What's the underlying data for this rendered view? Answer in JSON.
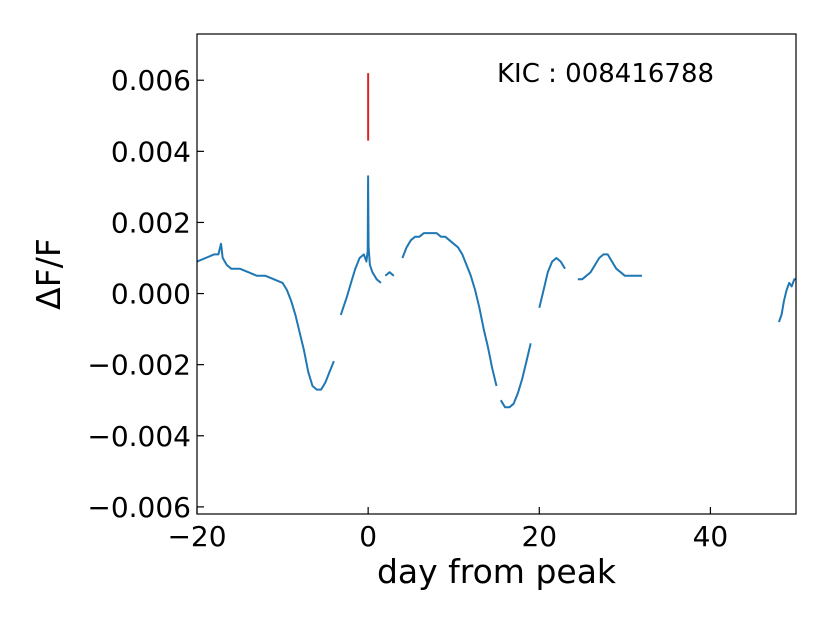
{
  "chart_data": {
    "type": "line",
    "title": "",
    "xlabel": "day from peak",
    "ylabel": "ΔF/F",
    "xlim": [
      -20,
      50
    ],
    "ylim": [
      -0.0062,
      0.0073
    ],
    "xticks": [
      -20,
      0,
      20,
      40
    ],
    "xtick_labels": [
      "−20",
      "0",
      "20",
      "40"
    ],
    "yticks": [
      -0.006,
      -0.004,
      -0.002,
      0.0,
      0.002,
      0.004,
      0.006
    ],
    "ytick_labels": [
      "−0.006",
      "−0.004",
      "−0.002",
      "0.000",
      "0.002",
      "0.004",
      "0.006"
    ],
    "annotation": "KIC : 008416788",
    "grid": false,
    "legend": "none",
    "series_color": "#1f77b4",
    "marker_color": "#d62728",
    "peak_marker": {
      "x": 0.0,
      "y_from": 0.0043,
      "y_to": 0.0062
    },
    "segments": [
      {
        "x": [
          -20,
          -19,
          -18,
          -17.5,
          -17.2,
          -17,
          -16.5,
          -16,
          -15,
          -14,
          -13,
          -12,
          -11,
          -10,
          -9.5,
          -9,
          -8.5,
          -8,
          -7.5,
          -7,
          -6.5,
          -6,
          -5.5,
          -5,
          -4.5,
          -4
        ],
        "y": [
          0.0009,
          0.001,
          0.0011,
          0.0011,
          0.0014,
          0.001,
          0.0008,
          0.0007,
          0.0007,
          0.0006,
          0.0005,
          0.0005,
          0.0004,
          0.0003,
          0.0001,
          -0.0002,
          -0.0006,
          -0.0011,
          -0.0016,
          -0.0022,
          -0.0026,
          -0.0027,
          -0.0027,
          -0.0025,
          -0.0022,
          -0.0019
        ]
      },
      {
        "x": [
          -3.2,
          -2.5,
          -2,
          -1.5,
          -1,
          -0.5,
          -0.2,
          -0.05,
          0.0,
          0.05,
          0.2,
          0.5,
          1,
          1.5
        ],
        "y": [
          -0.0006,
          -0.0001,
          0.0003,
          0.0007,
          0.001,
          0.0011,
          0.0009,
          0.0012,
          0.0033,
          0.0013,
          0.0008,
          0.0006,
          0.0004,
          0.0003
        ]
      },
      {
        "x": [
          2.0,
          2.5,
          3.0
        ],
        "y": [
          0.0005,
          0.0006,
          0.0005
        ]
      },
      {
        "x": [
          4.0,
          4.5,
          5,
          5.5,
          6,
          6.5,
          7,
          7.5,
          8,
          8.5,
          9,
          9.5,
          10,
          10.5,
          11,
          11.5,
          12,
          12.5,
          13,
          13.5,
          14,
          14.5,
          15
        ],
        "y": [
          0.001,
          0.0013,
          0.0015,
          0.0016,
          0.0016,
          0.0017,
          0.0017,
          0.0017,
          0.0017,
          0.0016,
          0.0016,
          0.0015,
          0.0014,
          0.0013,
          0.0011,
          0.0008,
          0.0005,
          0.0001,
          -0.0004,
          -0.001,
          -0.0015,
          -0.0021,
          -0.0026
        ]
      },
      {
        "x": [
          15.5,
          16,
          16.5,
          17,
          17.5,
          18,
          18.5,
          19
        ],
        "y": [
          -0.003,
          -0.0032,
          -0.0032,
          -0.0031,
          -0.0028,
          -0.0024,
          -0.0019,
          -0.0014
        ]
      },
      {
        "x": [
          20,
          20.5,
          21,
          21.5,
          22,
          22.5,
          23
        ],
        "y": [
          -0.0004,
          0.0001,
          0.0006,
          0.0009,
          0.001,
          0.0009,
          0.0007
        ]
      },
      {
        "x": [
          24.5,
          25,
          25.5,
          26,
          26.5,
          27,
          27.5,
          28,
          28.5,
          29,
          29.5,
          30,
          30.5,
          31,
          31.5,
          32
        ],
        "y": [
          0.0004,
          0.0004,
          0.0005,
          0.0006,
          0.0008,
          0.001,
          0.0011,
          0.0011,
          0.0009,
          0.0007,
          0.0006,
          0.0005,
          0.0005,
          0.0005,
          0.0005,
          0.0005
        ]
      },
      {
        "x": [
          48.0,
          48.3,
          48.6,
          48.9,
          49.2,
          49.5,
          49.8,
          50.0
        ],
        "y": [
          -0.0008,
          -0.0006,
          -0.0002,
          0.0001,
          0.0003,
          0.0002,
          0.0004,
          0.0004
        ]
      }
    ]
  }
}
